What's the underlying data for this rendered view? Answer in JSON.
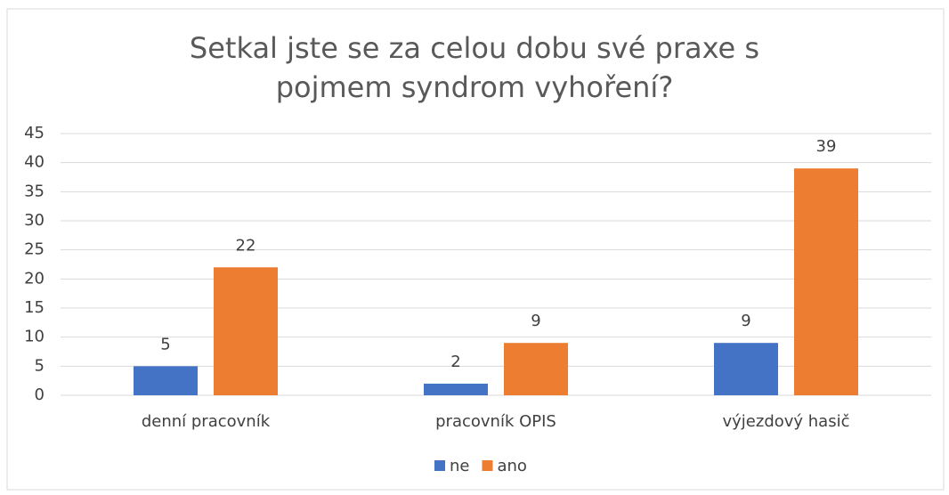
{
  "chart_data": {
    "type": "bar",
    "title": "Setkal jste se za celou dobu své praxe s pojmem syndrom vyhoření?",
    "categories": [
      "denní pracovník",
      "pracovník OPIS",
      "výjezdový hasič"
    ],
    "series": [
      {
        "name": "ne",
        "color": "#4472c4",
        "values": [
          5,
          2,
          9
        ]
      },
      {
        "name": "ano",
        "color": "#ed7d31",
        "values": [
          22,
          9,
          39
        ]
      }
    ],
    "ylim": [
      0,
      45
    ],
    "yticks": [
      0,
      5,
      10,
      15,
      20,
      25,
      30,
      35,
      40,
      45
    ],
    "grid": true,
    "legend": "bottom"
  }
}
